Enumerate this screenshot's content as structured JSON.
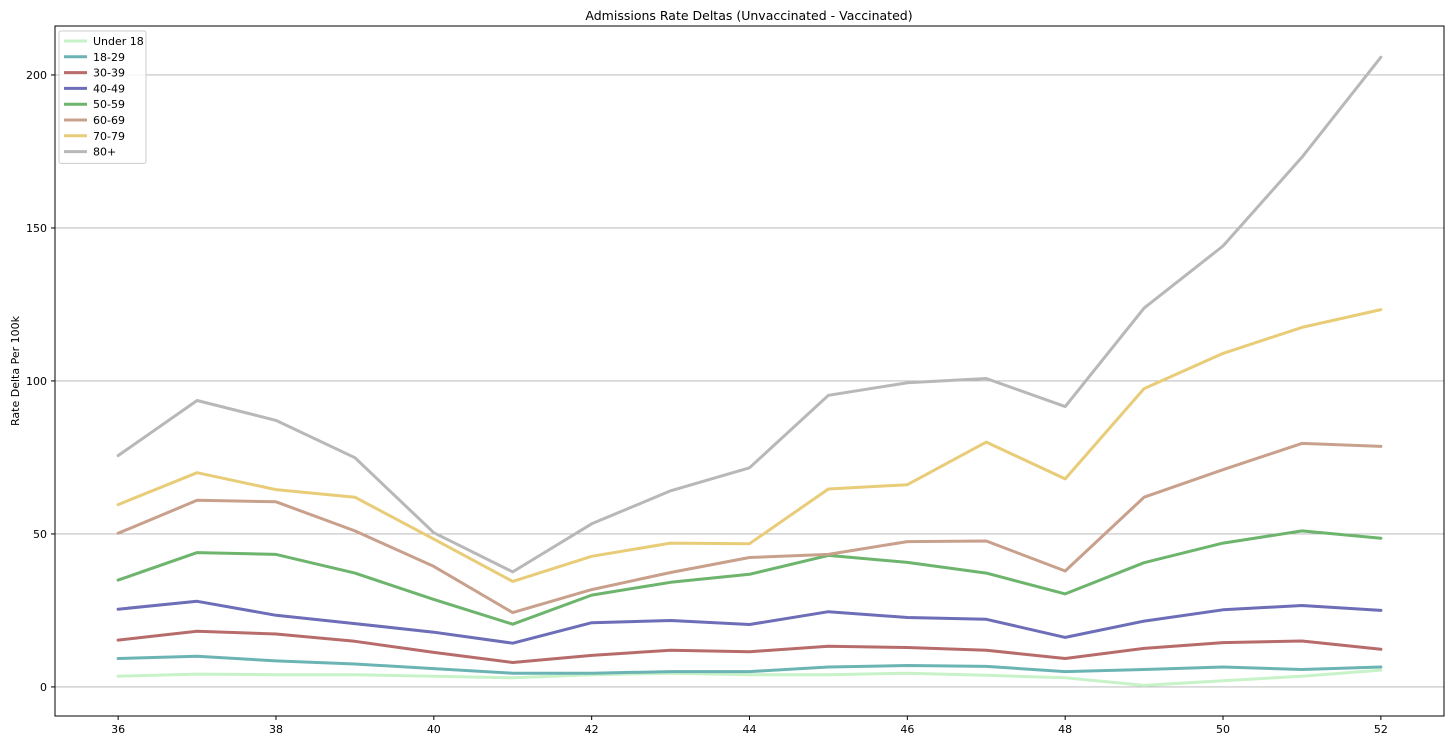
{
  "chart_data": {
    "type": "line",
    "title": "Admissions Rate Deltas (Unvaccinated - Vaccinated)",
    "xlabel": "",
    "ylabel": "Rate Delta Per 100k",
    "x": [
      36,
      37,
      38,
      39,
      40,
      41,
      42,
      43,
      44,
      45,
      46,
      47,
      48,
      49,
      50,
      51,
      52
    ],
    "xticks": [
      "36",
      "38",
      "40",
      "42",
      "44",
      "46",
      "48",
      "50",
      "52"
    ],
    "yticks": [
      "0",
      "50",
      "100",
      "150",
      "200"
    ],
    "xlim": [
      35.2,
      52.8
    ],
    "ylim": [
      -9.5,
      216
    ],
    "grid": "horizontal",
    "legend_position": "top-left",
    "series": [
      {
        "name": "Under 18",
        "color": "#c8f2c8",
        "values": [
          3.5,
          4.2,
          4.0,
          4.0,
          3.5,
          3.0,
          4.0,
          4.5,
          4.0,
          4.0,
          4.5,
          3.8,
          3.0,
          0.5,
          2.0,
          3.5,
          5.5
        ]
      },
      {
        "name": "18-29",
        "color": "#6cb4b4",
        "values": [
          9.3,
          10.0,
          8.5,
          7.5,
          6.0,
          4.5,
          4.5,
          5.0,
          5.0,
          6.5,
          7.0,
          6.7,
          5.0,
          5.7,
          6.5,
          5.7,
          6.5
        ]
      },
      {
        "name": "30-39",
        "color": "#b86b6b",
        "values": [
          15.3,
          18.2,
          17.3,
          14.9,
          11.3,
          8.0,
          10.3,
          12.0,
          11.5,
          13.3,
          12.9,
          12.0,
          9.3,
          12.6,
          14.5,
          15.0,
          12.3
        ]
      },
      {
        "name": "40-49",
        "color": "#6d6db8",
        "values": [
          25.4,
          28.0,
          23.4,
          20.7,
          17.9,
          14.3,
          21.0,
          21.7,
          20.4,
          24.6,
          22.7,
          22.1,
          16.2,
          21.5,
          25.2,
          26.6,
          25.0
        ]
      },
      {
        "name": "50-59",
        "color": "#6db46d",
        "values": [
          34.9,
          43.9,
          43.3,
          37.2,
          28.6,
          20.5,
          30.0,
          34.2,
          36.8,
          43.0,
          40.7,
          37.2,
          30.4,
          40.6,
          47.0,
          51.0,
          48.6
        ]
      },
      {
        "name": "60-69",
        "color": "#c8a08c",
        "values": [
          50.2,
          61.0,
          60.5,
          51.0,
          39.4,
          24.3,
          31.8,
          37.4,
          42.3,
          43.3,
          47.5,
          47.7,
          37.9,
          62.0,
          71.0,
          79.6,
          78.6
        ]
      },
      {
        "name": "70-79",
        "color": "#e8cc78",
        "values": [
          59.6,
          70.0,
          64.5,
          62.0,
          48.3,
          34.5,
          42.7,
          47.0,
          46.8,
          64.7,
          66.1,
          80.0,
          68.0,
          97.5,
          109.0,
          117.5,
          123.3
        ]
      },
      {
        "name": "80+",
        "color": "#b8b8b8",
        "values": [
          75.6,
          93.6,
          87.1,
          74.9,
          50.4,
          37.6,
          53.3,
          64.1,
          71.6,
          95.3,
          99.4,
          100.8,
          91.6,
          123.8,
          144.1,
          173.1,
          205.8
        ]
      }
    ]
  }
}
